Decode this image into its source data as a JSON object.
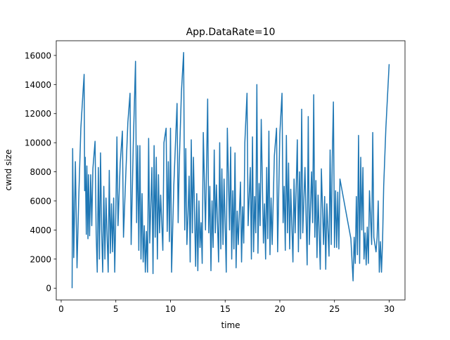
{
  "chart_data": {
    "type": "line",
    "title": "App.DataRate=10",
    "x_label": "time",
    "y_label": "cwnd size",
    "xlim": [
      -0.45,
      31.45
    ],
    "ylim": [
      -810,
      17010
    ],
    "xticks": [
      0,
      5,
      10,
      15,
      20,
      25,
      30
    ],
    "yticks": [
      0,
      2000,
      4000,
      6000,
      8000,
      10000,
      12000,
      14000,
      16000
    ],
    "grid": false,
    "x": [
      1.0,
      1.05,
      1.15,
      1.3,
      1.45,
      1.6,
      1.8,
      2.0,
      2.1,
      2.15,
      2.2,
      2.3,
      2.35,
      2.45,
      2.5,
      2.6,
      2.7,
      2.8,
      2.9,
      3.1,
      3.2,
      3.3,
      3.4,
      3.5,
      3.6,
      3.7,
      3.8,
      3.9,
      4.0,
      4.1,
      4.3,
      4.4,
      4.5,
      4.6,
      4.7,
      4.8,
      4.9,
      5.0,
      5.1,
      5.2,
      5.4,
      5.6,
      5.7,
      5.9,
      6.1,
      6.3,
      6.4,
      6.6,
      6.8,
      6.9,
      7.0,
      7.1,
      7.2,
      7.3,
      7.4,
      7.5,
      7.6,
      7.7,
      7.8,
      7.9,
      8.0,
      8.1,
      8.3,
      8.4,
      8.5,
      8.6,
      8.7,
      8.8,
      8.9,
      9.0,
      9.1,
      9.3,
      9.4,
      9.6,
      9.7,
      9.8,
      9.9,
      10.0,
      10.1,
      10.3,
      10.5,
      10.6,
      10.7,
      10.8,
      11.0,
      11.2,
      11.3,
      11.4,
      11.5,
      11.6,
      11.7,
      11.8,
      11.9,
      12.0,
      12.1,
      12.3,
      12.4,
      12.5,
      12.6,
      12.7,
      12.8,
      12.9,
      13.0,
      13.2,
      13.4,
      13.5,
      13.6,
      13.7,
      13.8,
      13.9,
      14.0,
      14.1,
      14.2,
      14.4,
      14.5,
      14.6,
      14.7,
      14.8,
      14.9,
      15.1,
      15.2,
      15.4,
      15.5,
      15.6,
      15.7,
      15.8,
      15.9,
      16.0,
      16.1,
      16.2,
      16.4,
      16.5,
      16.6,
      16.7,
      16.8,
      17.0,
      17.1,
      17.3,
      17.4,
      17.5,
      17.6,
      17.7,
      17.8,
      17.9,
      18.0,
      18.1,
      18.2,
      18.3,
      18.5,
      18.6,
      18.7,
      18.8,
      18.9,
      19.0,
      19.1,
      19.2,
      19.3,
      19.5,
      19.7,
      19.8,
      20.0,
      20.2,
      20.3,
      20.4,
      20.5,
      20.6,
      20.7,
      20.8,
      20.9,
      21.0,
      21.2,
      21.3,
      21.4,
      21.6,
      21.7,
      21.8,
      21.9,
      22.0,
      22.1,
      22.3,
      22.5,
      22.6,
      22.7,
      22.9,
      23.0,
      23.1,
      23.2,
      23.3,
      23.4,
      23.5,
      23.7,
      23.8,
      24.0,
      24.1,
      24.2,
      24.3,
      24.5,
      24.6,
      24.7,
      24.8,
      24.9,
      25.0,
      25.1,
      25.2,
      25.3,
      25.4,
      25.5,
      26.5,
      26.7,
      26.8,
      26.9,
      27.0,
      27.1,
      27.2,
      27.3,
      27.4,
      27.5,
      27.6,
      27.7,
      27.8,
      27.9,
      28.0,
      28.1,
      28.2,
      28.4,
      28.5,
      28.6,
      28.8,
      28.9,
      29.0,
      29.1,
      29.2,
      29.3,
      29.4,
      29.5,
      29.7,
      30.0
    ],
    "series": [
      {
        "color": "#1f77b4",
        "values": [
          0,
          9600,
          2100,
          8700,
          1400,
          6000,
          11000,
          13500,
          14700,
          6700,
          9000,
          3700,
          8400,
          3400,
          7800,
          3600,
          7800,
          4300,
          8200,
          10100,
          3800,
          1100,
          8300,
          2000,
          9300,
          4000,
          1100,
          7000,
          2000,
          6200,
          1100,
          8100,
          2400,
          5800,
          2500,
          6200,
          1100,
          5200,
          10400,
          4300,
          8600,
          10800,
          3500,
          7600,
          11400,
          13400,
          3000,
          10000,
          15600,
          4500,
          9800,
          2600,
          9800,
          2000,
          6500,
          1800,
          4300,
          1100,
          3900,
          1100,
          10300,
          3100,
          8300,
          1000,
          9800,
          3500,
          9000,
          2000,
          7800,
          3800,
          6400,
          2600,
          10000,
          11000,
          3900,
          8700,
          3200,
          11000,
          1100,
          7000,
          10800,
          12700,
          4500,
          8500,
          13500,
          16200,
          4000,
          9600,
          3000,
          5000,
          7700,
          1800,
          10200,
          3800,
          9000,
          1500,
          6500,
          1200,
          6000,
          2800,
          4500,
          1700,
          10700,
          4000,
          13000,
          3800,
          7000,
          1200,
          6000,
          2800,
          9500,
          3800,
          7100,
          1800,
          10000,
          2700,
          8200,
          3000,
          7500,
          1100,
          11000,
          4000,
          9700,
          2000,
          6700,
          2700,
          9300,
          1400,
          5300,
          3000,
          7300,
          1800,
          5600,
          3100,
          10000,
          13400,
          4300,
          8300,
          2000,
          10400,
          2500,
          6300,
          3800,
          14000,
          2400,
          7200,
          4300,
          11600,
          3100,
          5800,
          2000,
          8300,
          3400,
          10800,
          2300,
          6200,
          3000,
          9100,
          11000,
          2500,
          10600,
          13400,
          4500,
          7000,
          2600,
          10500,
          3800,
          8600,
          2700,
          6800,
          1800,
          7500,
          3800,
          10200,
          2500,
          8000,
          3400,
          12300,
          3800,
          8300,
          1600,
          11800,
          3000,
          8000,
          4500,
          13300,
          3500,
          7400,
          2100,
          6400,
          1300,
          8200,
          3000,
          6300,
          1300,
          5800,
          2200,
          9500,
          3000,
          9000,
          12800,
          2800,
          6700,
          2800,
          6600,
          2700,
          7500,
          3400,
          500,
          3500,
          1700,
          6300,
          2300,
          10500,
          1700,
          9000,
          4000,
          8300,
          2000,
          3800,
          1600,
          4200,
          1700,
          6700,
          3000,
          10700,
          3500,
          2500,
          3500,
          6000,
          1100,
          3200,
          1100,
          3300,
          7000,
          11000,
          15400
        ]
      }
    ]
  }
}
